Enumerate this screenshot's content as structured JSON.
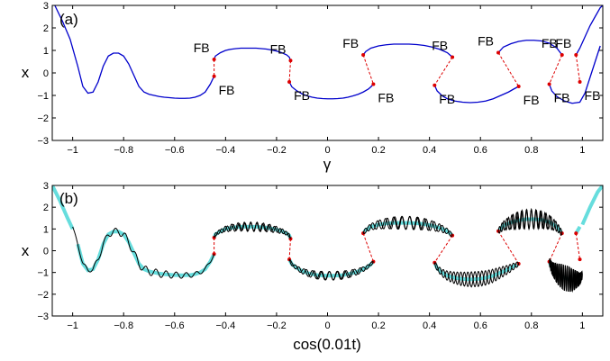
{
  "chart_data": [
    {
      "panel_label": "(a)",
      "type": "line",
      "xlabel": "γ",
      "ylabel": "x",
      "xlim": [
        -1.08,
        1.08
      ],
      "ylim": [
        -3,
        3
      ],
      "xticks": [
        -1,
        -0.8,
        -0.6,
        -0.4,
        -0.2,
        0,
        0.2,
        0.4,
        0.6,
        0.8,
        1
      ],
      "xtick_labels": [
        "−1",
        "−0.8",
        "−0.6",
        "−0.4",
        "−0.2",
        "0",
        "0.2",
        "0.4",
        "0.6",
        "0.8",
        "1"
      ],
      "yticks": [
        -3,
        -2,
        -1,
        0,
        1,
        2,
        3
      ],
      "ytick_labels": [
        "−3",
        "−2",
        "−1",
        "0",
        "1",
        "2",
        "3"
      ],
      "series_color": "#0000cc",
      "series": [
        {
          "x": [
            -1.07,
            -1.04,
            -1.01,
            -0.98,
            -0.96,
            -0.94,
            -0.92,
            -0.9,
            -0.88,
            -0.86,
            -0.84,
            -0.82,
            -0.8,
            -0.78,
            -0.76,
            -0.74,
            -0.72,
            -0.7,
            -0.68,
            -0.66,
            -0.64,
            -0.62,
            -0.6,
            -0.58,
            -0.56,
            -0.54,
            -0.52,
            -0.5,
            -0.48,
            -0.46,
            -0.445
          ],
          "y": [
            3.0,
            2.3,
            1.5,
            0.3,
            -0.6,
            -0.9,
            -0.85,
            -0.4,
            0.3,
            0.75,
            0.88,
            0.88,
            0.75,
            0.4,
            -0.1,
            -0.6,
            -0.85,
            -0.95,
            -1.0,
            -1.05,
            -1.08,
            -1.1,
            -1.12,
            -1.13,
            -1.13,
            -1.12,
            -1.08,
            -1.0,
            -0.85,
            -0.5,
            -0.15
          ]
        },
        {
          "x": [
            -0.445,
            -0.44,
            -0.42,
            -0.4,
            -0.38,
            -0.36,
            -0.34,
            -0.32,
            -0.3,
            -0.28,
            -0.26,
            -0.24,
            -0.22,
            -0.2,
            -0.18,
            -0.16,
            -0.15,
            -0.145
          ],
          "y": [
            0.6,
            0.75,
            0.9,
            1.0,
            1.05,
            1.08,
            1.1,
            1.1,
            1.1,
            1.1,
            1.08,
            1.06,
            1.02,
            0.97,
            0.9,
            0.8,
            0.7,
            0.55
          ]
        },
        {
          "x": [
            -0.15,
            -0.14,
            -0.12,
            -0.1,
            -0.08,
            -0.06,
            -0.04,
            -0.02,
            0.0,
            0.02,
            0.04,
            0.06,
            0.08,
            0.1,
            0.12,
            0.14,
            0.16,
            0.17,
            0.18
          ],
          "y": [
            -0.4,
            -0.62,
            -0.8,
            -0.93,
            -1.02,
            -1.08,
            -1.12,
            -1.14,
            -1.15,
            -1.15,
            -1.14,
            -1.12,
            -1.08,
            -1.02,
            -0.95,
            -0.85,
            -0.72,
            -0.62,
            -0.5
          ]
        },
        {
          "x": [
            0.14,
            0.15,
            0.17,
            0.2,
            0.23,
            0.26,
            0.29,
            0.32,
            0.35,
            0.38,
            0.41,
            0.44,
            0.47,
            0.49
          ],
          "y": [
            0.8,
            0.95,
            1.1,
            1.2,
            1.25,
            1.28,
            1.28,
            1.28,
            1.26,
            1.22,
            1.15,
            1.05,
            0.9,
            0.7
          ]
        },
        {
          "x": [
            0.42,
            0.43,
            0.45,
            0.47,
            0.5,
            0.53,
            0.56,
            0.59,
            0.62,
            0.65,
            0.68,
            0.71,
            0.73,
            0.75
          ],
          "y": [
            -0.55,
            -0.8,
            -1.02,
            -1.15,
            -1.25,
            -1.3,
            -1.32,
            -1.3,
            -1.25,
            -1.15,
            -1.0,
            -0.85,
            -0.72,
            -0.6
          ]
        },
        {
          "x": [
            0.67,
            0.69,
            0.72,
            0.75,
            0.78,
            0.81,
            0.84,
            0.87,
            0.9,
            0.92
          ],
          "y": [
            0.9,
            1.15,
            1.3,
            1.4,
            1.45,
            1.45,
            1.42,
            1.32,
            1.1,
            0.8
          ]
        },
        {
          "x": [
            0.87,
            0.88,
            0.9,
            0.93,
            0.96,
            0.99,
            1.01,
            1.03,
            1.05,
            1.07
          ],
          "y": [
            -0.5,
            -0.8,
            -1.05,
            -1.25,
            -1.35,
            -1.3,
            -0.9,
            -0.2,
            0.5,
            1.2
          ]
        },
        {
          "x": [
            0.975,
            0.99,
            1.01,
            1.03,
            1.05,
            1.07,
            1.08
          ],
          "y": [
            0.8,
            1.1,
            1.6,
            2.1,
            2.5,
            2.9,
            3.0
          ]
        }
      ],
      "fold_points": [
        {
          "x": -0.445,
          "y": 0.6,
          "label": "FB"
        },
        {
          "x": -0.445,
          "y": -0.15,
          "label": "FB"
        },
        {
          "x": -0.145,
          "y": 0.55,
          "label": "FB"
        },
        {
          "x": -0.15,
          "y": -0.4,
          "label": "FB"
        },
        {
          "x": 0.14,
          "y": 0.8,
          "label": "FB"
        },
        {
          "x": 0.18,
          "y": -0.5,
          "label": "FB"
        },
        {
          "x": 0.49,
          "y": 0.7,
          "label": "FB"
        },
        {
          "x": 0.42,
          "y": -0.55,
          "label": "FB"
        },
        {
          "x": 0.67,
          "y": 0.9,
          "label": "FB"
        },
        {
          "x": 0.75,
          "y": -0.6,
          "label": "FB"
        },
        {
          "x": 0.92,
          "y": 0.8,
          "label": "FB"
        },
        {
          "x": 0.87,
          "y": -0.5,
          "label": "FB"
        },
        {
          "x": 0.975,
          "y": 0.8,
          "label": "FB"
        },
        {
          "x": 0.99,
          "y": -0.4,
          "label": "FB"
        }
      ],
      "jumps": [
        {
          "from": [
            -0.445,
            0.6
          ],
          "to": [
            -0.445,
            -0.15
          ]
        },
        {
          "from": [
            -0.145,
            0.55
          ],
          "to": [
            -0.15,
            -0.4
          ]
        },
        {
          "from": [
            0.14,
            0.8
          ],
          "to": [
            0.18,
            -0.5
          ]
        },
        {
          "from": [
            0.49,
            0.7
          ],
          "to": [
            0.42,
            -0.55
          ]
        },
        {
          "from": [
            0.67,
            0.9
          ],
          "to": [
            0.75,
            -0.6
          ]
        },
        {
          "from": [
            0.92,
            0.8
          ],
          "to": [
            0.87,
            -0.5
          ]
        },
        {
          "from": [
            0.975,
            0.8
          ],
          "to": [
            0.99,
            -0.4
          ]
        }
      ],
      "jump_color": "#dd0000"
    },
    {
      "panel_label": "(b)",
      "type": "line",
      "xlabel": "cos(0.01t)",
      "ylabel": "x",
      "xlim": [
        -1.08,
        1.08
      ],
      "ylim": [
        -3,
        3
      ],
      "xticks": [
        -1,
        -0.8,
        -0.6,
        -0.4,
        -0.2,
        0,
        0.2,
        0.4,
        0.6,
        0.8,
        1
      ],
      "xtick_labels": [
        "−1",
        "−0.8",
        "−0.6",
        "−0.4",
        "−0.2",
        "0",
        "0.2",
        "0.4",
        "0.6",
        "0.8",
        "1"
      ],
      "yticks": [
        -3,
        -2,
        -1,
        0,
        1,
        2,
        3
      ],
      "ytick_labels": [
        "−3",
        "−2",
        "−1",
        "0",
        "1",
        "2",
        "3"
      ],
      "slow_manifold_color": "#66dddd",
      "trajectory_color": "#000000",
      "jump_color": "#dd0000",
      "tails": [
        {
          "x": [
            -1.08,
            -1.05,
            -1.02,
            -1.0
          ],
          "y": [
            3.0,
            2.3,
            1.5,
            1.0
          ]
        },
        {
          "x": [
            1.0,
            1.03,
            1.06,
            1.08
          ],
          "y": [
            1.2,
            2.0,
            2.7,
            3.0
          ]
        }
      ]
    }
  ]
}
